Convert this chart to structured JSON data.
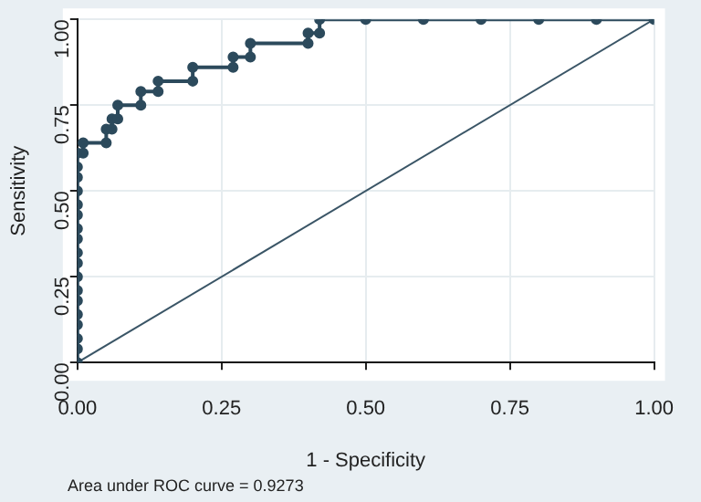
{
  "chart_data": {
    "type": "line",
    "xlabel": "1 - Specificity",
    "ylabel": "Sensitivity",
    "annotations": [
      "Area under ROC curve = 0.9273"
    ],
    "xlim": [
      0,
      1
    ],
    "ylim": [
      0,
      1
    ],
    "xticks": [
      {
        "value": 0,
        "label": "0.00"
      },
      {
        "value": 0.25,
        "label": "0.25"
      },
      {
        "value": 0.5,
        "label": "0.50"
      },
      {
        "value": 0.75,
        "label": "0.75"
      },
      {
        "value": 1,
        "label": "1.00"
      }
    ],
    "yticks": [
      {
        "value": 0,
        "label": "0.00"
      },
      {
        "value": 0.25,
        "label": "0.25"
      },
      {
        "value": 0.5,
        "label": "0.50"
      },
      {
        "value": 0.75,
        "label": "0.75"
      },
      {
        "value": 1,
        "label": "1.00"
      }
    ],
    "grid": true,
    "legend": false,
    "series": [
      {
        "color": "#2c4a5c",
        "marker": "circle",
        "x": [
          0,
          0,
          0,
          0,
          0,
          0,
          0,
          0,
          0,
          0,
          0,
          0,
          0,
          0,
          0,
          0,
          0,
          0,
          0.01,
          0.01,
          0.05,
          0.05,
          0.06,
          0.06,
          0.07,
          0.07,
          0.11,
          0.11,
          0.14,
          0.14,
          0.2,
          0.2,
          0.27,
          0.27,
          0.3,
          0.3,
          0.4,
          0.4,
          0.42,
          0.42,
          0.5,
          0.6,
          0.7,
          0.8,
          0.9,
          1
        ],
        "values": [
          0,
          0.04,
          0.07,
          0.11,
          0.14,
          0.18,
          0.21,
          0.25,
          0.29,
          0.32,
          0.36,
          0.39,
          0.43,
          0.46,
          0.5,
          0.54,
          0.57,
          0.61,
          0.61,
          0.64,
          0.64,
          0.68,
          0.68,
          0.71,
          0.71,
          0.75,
          0.75,
          0.79,
          0.79,
          0.82,
          0.82,
          0.86,
          0.86,
          0.89,
          0.89,
          0.93,
          0.93,
          0.96,
          0.96,
          1,
          1,
          1,
          1,
          1,
          1,
          1
        ]
      },
      {
        "color": "#3a5566",
        "marker": "none",
        "x": [
          0,
          1
        ],
        "values": [
          0,
          1
        ]
      }
    ]
  }
}
